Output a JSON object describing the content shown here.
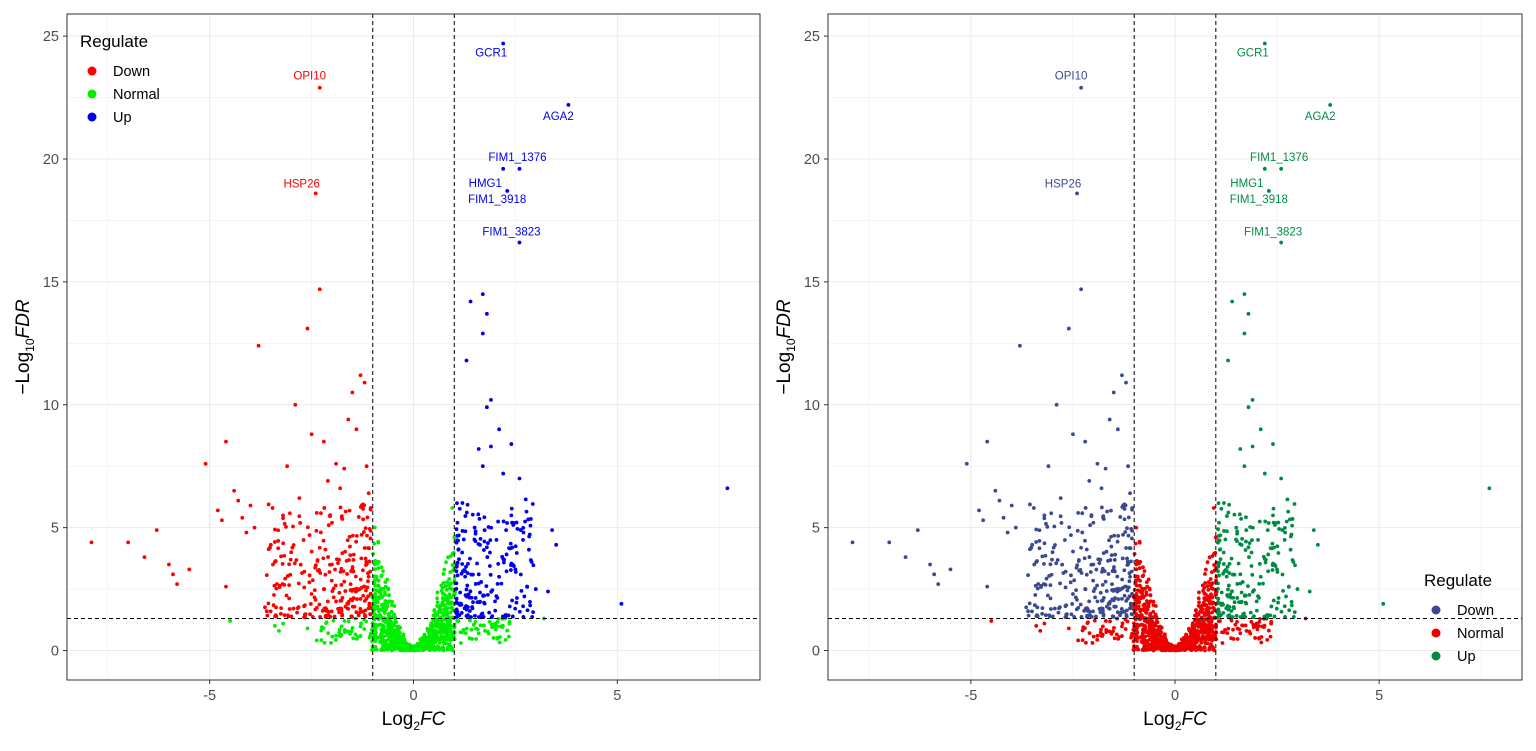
{
  "colors": {
    "grid": "#ebebeb",
    "tick_label": "#4d4d4d",
    "axis_title": "#000000"
  },
  "chart_data": [
    {
      "type": "scatter",
      "xlabel": "Log2FC",
      "ylabel": "−Log10FDR",
      "xlabel_parts": [
        "Log",
        "2",
        "FC"
      ],
      "ylabel_parts": [
        "−Log",
        "10",
        "FDR"
      ],
      "xlim": [
        -8.5,
        8.5
      ],
      "ylim": [
        -1.2,
        25.9
      ],
      "xticks": [
        -5,
        0,
        5
      ],
      "yticks": [
        0,
        5,
        10,
        15,
        20,
        25
      ],
      "xtick_labels": [
        "-5",
        "0",
        "5"
      ],
      "ytick_labels": [
        "0",
        "5",
        "10",
        "15",
        "20",
        "25"
      ],
      "grid": true,
      "thresholds": {
        "x": [
          -1,
          1
        ],
        "y": 1.3
      },
      "legend": {
        "title": "Regulate",
        "position": "top-left",
        "entries": [
          "Down",
          "Normal",
          "Up"
        ]
      },
      "series": [
        {
          "name": "Down",
          "color": "#ff0000",
          "points": [
            [
              -7.9,
              4.4
            ],
            [
              -7.0,
              4.4
            ],
            [
              -6.6,
              3.8
            ],
            [
              -6.3,
              4.9
            ],
            [
              -6.0,
              3.5
            ],
            [
              -5.9,
              3.1
            ],
            [
              -5.8,
              2.7
            ],
            [
              -5.5,
              3.3
            ],
            [
              -5.1,
              7.6
            ],
            [
              -4.8,
              5.7
            ],
            [
              -4.6,
              8.5
            ],
            [
              -4.7,
              5.3
            ],
            [
              -4.6,
              2.6
            ],
            [
              -4.4,
              6.5
            ],
            [
              -4.3,
              6.1
            ],
            [
              -4.2,
              5.4
            ],
            [
              -4.1,
              4.8
            ],
            [
              -4.0,
              5.9
            ],
            [
              -3.9,
              5.0
            ],
            [
              -3.8,
              12.4
            ],
            [
              -3.6,
              1.6
            ],
            [
              -3.5,
              4.3
            ],
            [
              -3.4,
              3.6
            ],
            [
              -3.2,
              5.5
            ],
            [
              -3.1,
              7.5
            ],
            [
              -3.0,
              4.0
            ],
            [
              -2.9,
              10.0
            ],
            [
              -2.8,
              6.2
            ],
            [
              -2.6,
              13.1
            ],
            [
              -2.5,
              8.8
            ],
            [
              -2.4,
              18.6
            ],
            [
              -2.3,
              14.7
            ],
            [
              -2.3,
              22.9
            ],
            [
              -2.2,
              8.5
            ],
            [
              -2.1,
              6.9
            ],
            [
              -2.0,
              5.2
            ],
            [
              -1.9,
              7.6
            ],
            [
              -1.8,
              6.6
            ],
            [
              -1.7,
              7.4
            ],
            [
              -1.6,
              9.4
            ],
            [
              -1.5,
              10.5
            ],
            [
              -1.4,
              9.0
            ],
            [
              -1.3,
              11.2
            ],
            [
              -1.2,
              10.9
            ],
            [
              -1.15,
              7.5
            ],
            [
              -1.1,
              6.4
            ],
            [
              -1.05,
              5.8
            ],
            [
              -2.5,
              2.3
            ],
            [
              -2.2,
              2.5
            ],
            [
              -1.9,
              2.0
            ],
            [
              -1.7,
              2.8
            ],
            [
              -1.5,
              3.3
            ],
            [
              -1.3,
              2.1
            ],
            [
              -1.2,
              2.6
            ],
            [
              -1.1,
              3.0
            ],
            [
              -1.6,
              1.7
            ],
            [
              -2.0,
              3.5
            ]
          ]
        },
        {
          "name": "Normal",
          "color": "#00ee00",
          "points": [
            [
              -4.5,
              1.2
            ],
            [
              -3.4,
              1.0
            ],
            [
              -3.3,
              0.8
            ],
            [
              -3.2,
              1.1
            ],
            [
              -2.6,
              0.9
            ],
            [
              -1.9,
              0.6
            ],
            [
              -1.0,
              1.9
            ],
            [
              -0.95,
              3.5
            ],
            [
              -0.95,
              5.0
            ],
            [
              1.0,
              4.6
            ],
            [
              0.95,
              5.8
            ],
            [
              1.1,
              1.2
            ],
            [
              3.2,
              1.3
            ],
            [
              2.0,
              1.1
            ],
            [
              1.6,
              0.7
            ]
          ]
        },
        {
          "name": "Up",
          "color": "#0000ee",
          "points": [
            [
              2.2,
              24.7
            ],
            [
              3.8,
              22.2
            ],
            [
              2.6,
              19.6
            ],
            [
              2.2,
              19.6
            ],
            [
              2.3,
              18.7
            ],
            [
              2.6,
              16.6
            ],
            [
              1.7,
              14.5
            ],
            [
              1.4,
              14.2
            ],
            [
              1.8,
              13.7
            ],
            [
              1.7,
              12.9
            ],
            [
              1.3,
              11.8
            ],
            [
              1.9,
              10.2
            ],
            [
              1.8,
              9.9
            ],
            [
              2.1,
              9.0
            ],
            [
              1.9,
              8.3
            ],
            [
              2.4,
              8.4
            ],
            [
              1.6,
              8.2
            ],
            [
              1.7,
              7.5
            ],
            [
              2.2,
              7.2
            ],
            [
              2.6,
              7.0
            ],
            [
              3.4,
              4.9
            ],
            [
              3.5,
              4.3
            ],
            [
              2.9,
              3.6
            ],
            [
              2.5,
              3.3
            ],
            [
              3.0,
              2.5
            ],
            [
              3.3,
              2.4
            ],
            [
              5.1,
              1.9
            ],
            [
              7.7,
              6.6
            ],
            [
              1.2,
              6.0
            ],
            [
              1.5,
              5.0
            ],
            [
              1.8,
              4.2
            ],
            [
              2.1,
              3.0
            ],
            [
              2.4,
              5.5
            ],
            [
              1.3,
              2.2
            ],
            [
              1.6,
              3.1
            ],
            [
              2.0,
              2.0
            ],
            [
              1.1,
              4.1
            ]
          ]
        }
      ],
      "labels": [
        {
          "text": "GCR1",
          "x": 2.2,
          "y": 24.7,
          "series": "Up"
        },
        {
          "text": "AGA2",
          "x": 3.8,
          "y": 22.2,
          "series": "Up"
        },
        {
          "text": "FIM1_1376",
          "x": 2.6,
          "y": 19.6,
          "series": "Up"
        },
        {
          "text": "HMG1",
          "x": 2.3,
          "y": 18.7,
          "series": "Up"
        },
        {
          "text": "FIM1_3918",
          "x": 2.2,
          "y": 19.6,
          "series": "Up"
        },
        {
          "text": "FIM1_3823",
          "x": 2.6,
          "y": 16.6,
          "series": "Up"
        },
        {
          "text": "OPI10",
          "x": -2.3,
          "y": 22.9,
          "series": "Down"
        },
        {
          "text": "HSP26",
          "x": -2.4,
          "y": 18.6,
          "series": "Down"
        }
      ]
    },
    {
      "type": "scatter",
      "xlabel": "Log2FC",
      "ylabel": "−Log10FDR",
      "xlabel_parts": [
        "Log",
        "2",
        "FC"
      ],
      "ylabel_parts": [
        "−Log",
        "10",
        "FDR"
      ],
      "xlim": [
        -8.5,
        8.5
      ],
      "ylim": [
        -1.2,
        25.9
      ],
      "xticks": [
        -5,
        0,
        5
      ],
      "yticks": [
        0,
        5,
        10,
        15,
        20,
        25
      ],
      "xtick_labels": [
        "-5",
        "0",
        "5"
      ],
      "ytick_labels": [
        "0",
        "5",
        "10",
        "15",
        "20",
        "25"
      ],
      "grid": true,
      "thresholds": {
        "x": [
          -1,
          1
        ],
        "y": 1.3
      },
      "legend": {
        "title": "Regulate",
        "position": "bottom-right",
        "entries": [
          "Down",
          "Normal",
          "Up"
        ]
      },
      "series": [
        {
          "name": "Down",
          "color": "#3b4992",
          "points": [
            [
              -7.9,
              4.4
            ],
            [
              -7.0,
              4.4
            ],
            [
              -6.6,
              3.8
            ],
            [
              -6.3,
              4.9
            ],
            [
              -6.0,
              3.5
            ],
            [
              -5.9,
              3.1
            ],
            [
              -5.8,
              2.7
            ],
            [
              -5.5,
              3.3
            ],
            [
              -5.1,
              7.6
            ],
            [
              -4.8,
              5.7
            ],
            [
              -4.6,
              8.5
            ],
            [
              -4.7,
              5.3
            ],
            [
              -4.6,
              2.6
            ],
            [
              -4.4,
              6.5
            ],
            [
              -4.3,
              6.1
            ],
            [
              -4.2,
              5.4
            ],
            [
              -4.1,
              4.8
            ],
            [
              -4.0,
              5.9
            ],
            [
              -3.9,
              5.0
            ],
            [
              -3.8,
              12.4
            ],
            [
              -3.6,
              1.6
            ],
            [
              -3.5,
              4.3
            ],
            [
              -3.4,
              3.6
            ],
            [
              -3.2,
              5.5
            ],
            [
              -3.1,
              7.5
            ],
            [
              -3.0,
              4.0
            ],
            [
              -2.9,
              10.0
            ],
            [
              -2.8,
              6.2
            ],
            [
              -2.6,
              13.1
            ],
            [
              -2.5,
              8.8
            ],
            [
              -2.4,
              18.6
            ],
            [
              -2.3,
              14.7
            ],
            [
              -2.3,
              22.9
            ],
            [
              -2.2,
              8.5
            ],
            [
              -2.1,
              6.9
            ],
            [
              -2.0,
              5.2
            ],
            [
              -1.9,
              7.6
            ],
            [
              -1.8,
              6.6
            ],
            [
              -1.7,
              7.4
            ],
            [
              -1.6,
              9.4
            ],
            [
              -1.5,
              10.5
            ],
            [
              -1.4,
              9.0
            ],
            [
              -1.3,
              11.2
            ],
            [
              -1.2,
              10.9
            ],
            [
              -1.15,
              7.5
            ],
            [
              -1.1,
              6.4
            ],
            [
              -1.05,
              5.8
            ],
            [
              -2.5,
              2.3
            ],
            [
              -2.2,
              2.5
            ],
            [
              -1.9,
              2.0
            ],
            [
              -1.7,
              2.8
            ],
            [
              -1.5,
              3.3
            ],
            [
              -1.3,
              2.1
            ],
            [
              -1.2,
              2.6
            ],
            [
              -1.1,
              3.0
            ],
            [
              -1.6,
              1.7
            ],
            [
              -2.0,
              3.5
            ]
          ]
        },
        {
          "name": "Normal",
          "color": "#ee0000",
          "points": [
            [
              -4.5,
              1.2
            ],
            [
              -3.4,
              1.0
            ],
            [
              -3.3,
              0.8
            ],
            [
              -3.2,
              1.1
            ],
            [
              -2.6,
              0.9
            ],
            [
              -1.9,
              0.6
            ],
            [
              -1.0,
              1.9
            ],
            [
              -0.95,
              3.5
            ],
            [
              -0.95,
              5.0
            ],
            [
              1.0,
              4.6
            ],
            [
              0.95,
              5.8
            ],
            [
              1.1,
              1.2
            ],
            [
              3.2,
              1.3
            ],
            [
              2.0,
              1.1
            ],
            [
              1.6,
              0.7
            ]
          ]
        },
        {
          "name": "Up",
          "color": "#008b45",
          "points": [
            [
              2.2,
              24.7
            ],
            [
              3.8,
              22.2
            ],
            [
              2.6,
              19.6
            ],
            [
              2.2,
              19.6
            ],
            [
              2.3,
              18.7
            ],
            [
              2.6,
              16.6
            ],
            [
              1.7,
              14.5
            ],
            [
              1.4,
              14.2
            ],
            [
              1.8,
              13.7
            ],
            [
              1.7,
              12.9
            ],
            [
              1.3,
              11.8
            ],
            [
              1.9,
              10.2
            ],
            [
              1.8,
              9.9
            ],
            [
              2.1,
              9.0
            ],
            [
              1.9,
              8.3
            ],
            [
              2.4,
              8.4
            ],
            [
              1.6,
              8.2
            ],
            [
              1.7,
              7.5
            ],
            [
              2.2,
              7.2
            ],
            [
              2.6,
              7.0
            ],
            [
              3.4,
              4.9
            ],
            [
              3.5,
              4.3
            ],
            [
              2.9,
              3.6
            ],
            [
              2.5,
              3.3
            ],
            [
              3.0,
              2.5
            ],
            [
              3.3,
              2.4
            ],
            [
              5.1,
              1.9
            ],
            [
              7.7,
              6.6
            ],
            [
              1.2,
              6.0
            ],
            [
              1.5,
              5.0
            ],
            [
              1.8,
              4.2
            ],
            [
              2.1,
              3.0
            ],
            [
              2.4,
              5.5
            ],
            [
              1.3,
              2.2
            ],
            [
              1.6,
              3.1
            ],
            [
              2.0,
              2.0
            ],
            [
              1.1,
              4.1
            ]
          ]
        }
      ],
      "labels": [
        {
          "text": "GCR1",
          "x": 2.2,
          "y": 24.7,
          "series": "Up"
        },
        {
          "text": "AGA2",
          "x": 3.8,
          "y": 22.2,
          "series": "Up"
        },
        {
          "text": "FIM1_1376",
          "x": 2.6,
          "y": 19.6,
          "series": "Up"
        },
        {
          "text": "HMG1",
          "x": 2.3,
          "y": 18.7,
          "series": "Up"
        },
        {
          "text": "FIM1_3918",
          "x": 2.2,
          "y": 19.6,
          "series": "Up"
        },
        {
          "text": "FIM1_3823",
          "x": 2.6,
          "y": 16.6,
          "series": "Up"
        },
        {
          "text": "OPI10",
          "x": -2.3,
          "y": 22.9,
          "series": "Down"
        },
        {
          "text": "HSP26",
          "x": -2.4,
          "y": 18.6,
          "series": "Down"
        }
      ]
    }
  ]
}
